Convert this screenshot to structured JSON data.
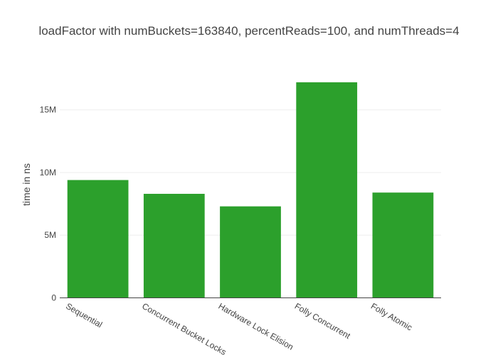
{
  "chart_data": {
    "type": "bar",
    "title": "loadFactor with numBuckets=163840, percentReads=100, and numThreads=4",
    "xlabel": "",
    "ylabel": "time in ns",
    "categories": [
      "Sequential",
      "Concurrent Bucket Locks",
      "Hardware Lock Elision",
      "Folly Concurrent",
      "Folly Atomic"
    ],
    "values": [
      9400000,
      8300000,
      7300000,
      17200000,
      8400000
    ],
    "ylim": [
      0,
      18100000
    ],
    "yticks": [
      0,
      5000000,
      10000000,
      15000000
    ],
    "ytick_labels": [
      "0",
      "5M",
      "10M",
      "15M"
    ],
    "grid": true,
    "bar_color": "#2ca02c",
    "tick_label_rotation_deg": 30
  }
}
